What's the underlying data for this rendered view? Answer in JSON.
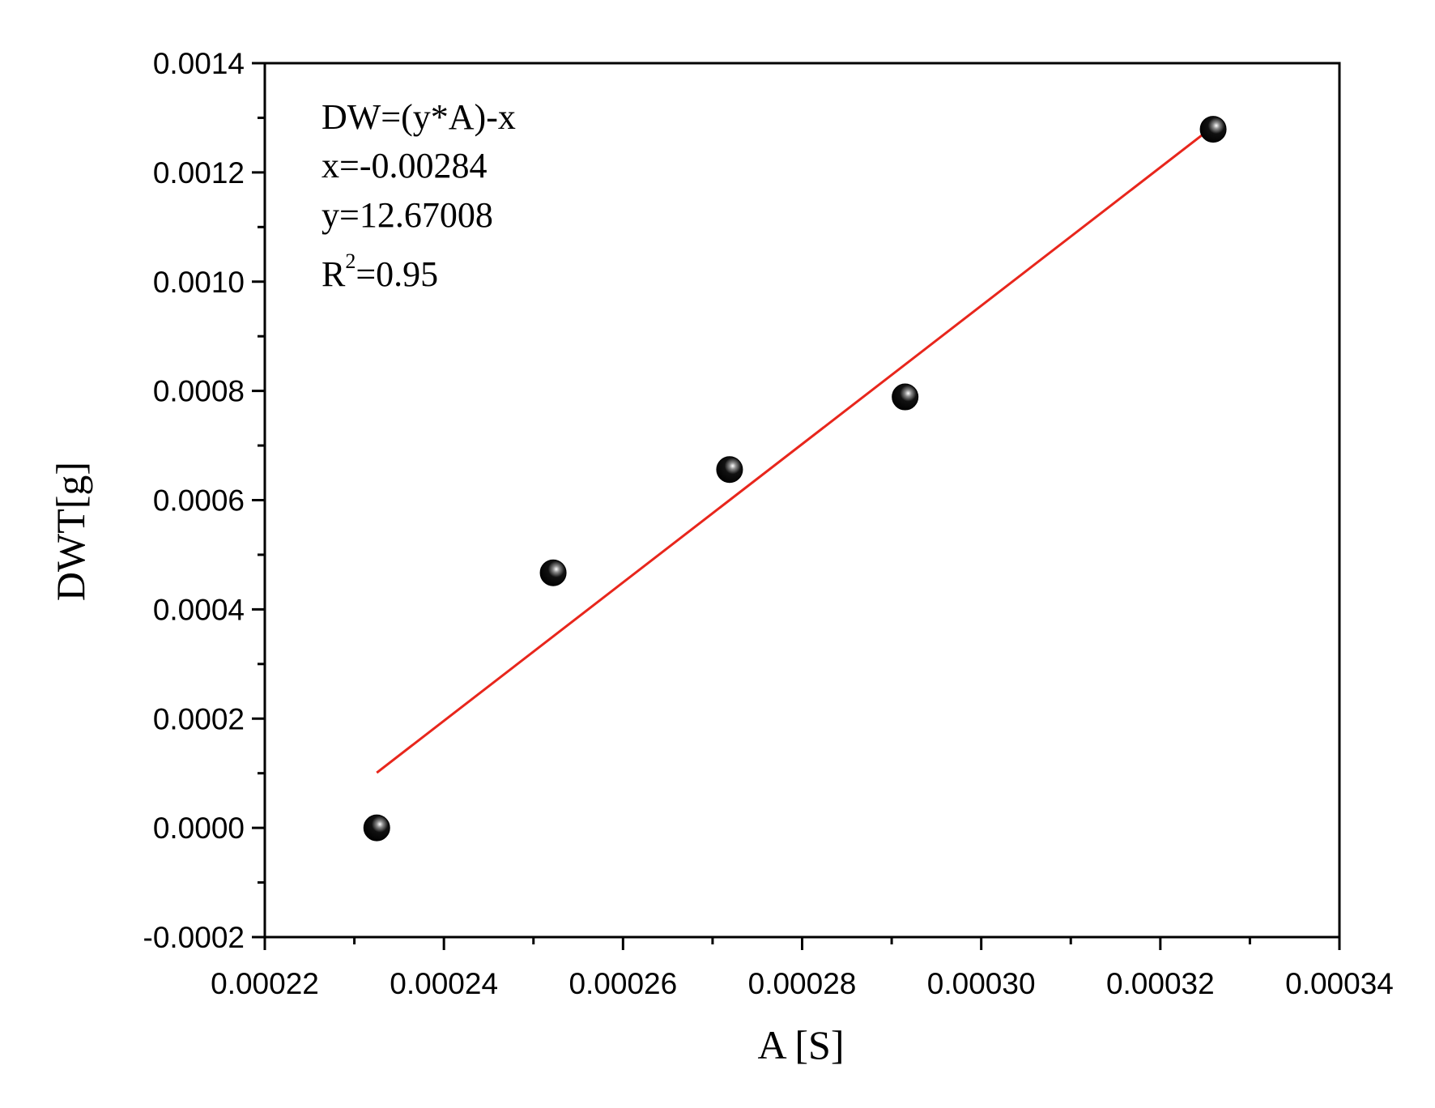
{
  "chart_data": {
    "type": "scatter",
    "xlabel": "A [S]",
    "ylabel": "DWT[g]",
    "xlim": [
      0.00022,
      0.00034
    ],
    "ylim": [
      -0.0002,
      0.0014
    ],
    "x_ticks": [
      "0.00022",
      "0.00024",
      "0.00026",
      "0.00028",
      "0.00030",
      "0.00032",
      "0.00034"
    ],
    "y_ticks": [
      "-0.0002",
      "0.0000",
      "0.0002",
      "0.0004",
      "0.0006",
      "0.0008",
      "0.0010",
      "0.0012",
      "0.0014"
    ],
    "grid": false,
    "series": [
      {
        "x": [
          0.0002325,
          0.0002522,
          0.0002719,
          0.0002915,
          0.0003259
        ],
        "y": [
          0.0,
          0.000467,
          0.000656,
          0.000789,
          0.001279
        ],
        "marker_color": "#000000"
      }
    ],
    "fit_line": {
      "x": [
        0.0002325,
        0.0003259
      ],
      "y": [
        0.000101,
        0.001284
      ],
      "color": "#e8261c"
    },
    "annotations": {
      "equation": "DW=(y*A)-x",
      "x_value": "x=-0.00284",
      "y_value": "y=12.67008",
      "r2_prefix": "R",
      "r2_sup": "2",
      "r2_value": "=0.95"
    }
  }
}
